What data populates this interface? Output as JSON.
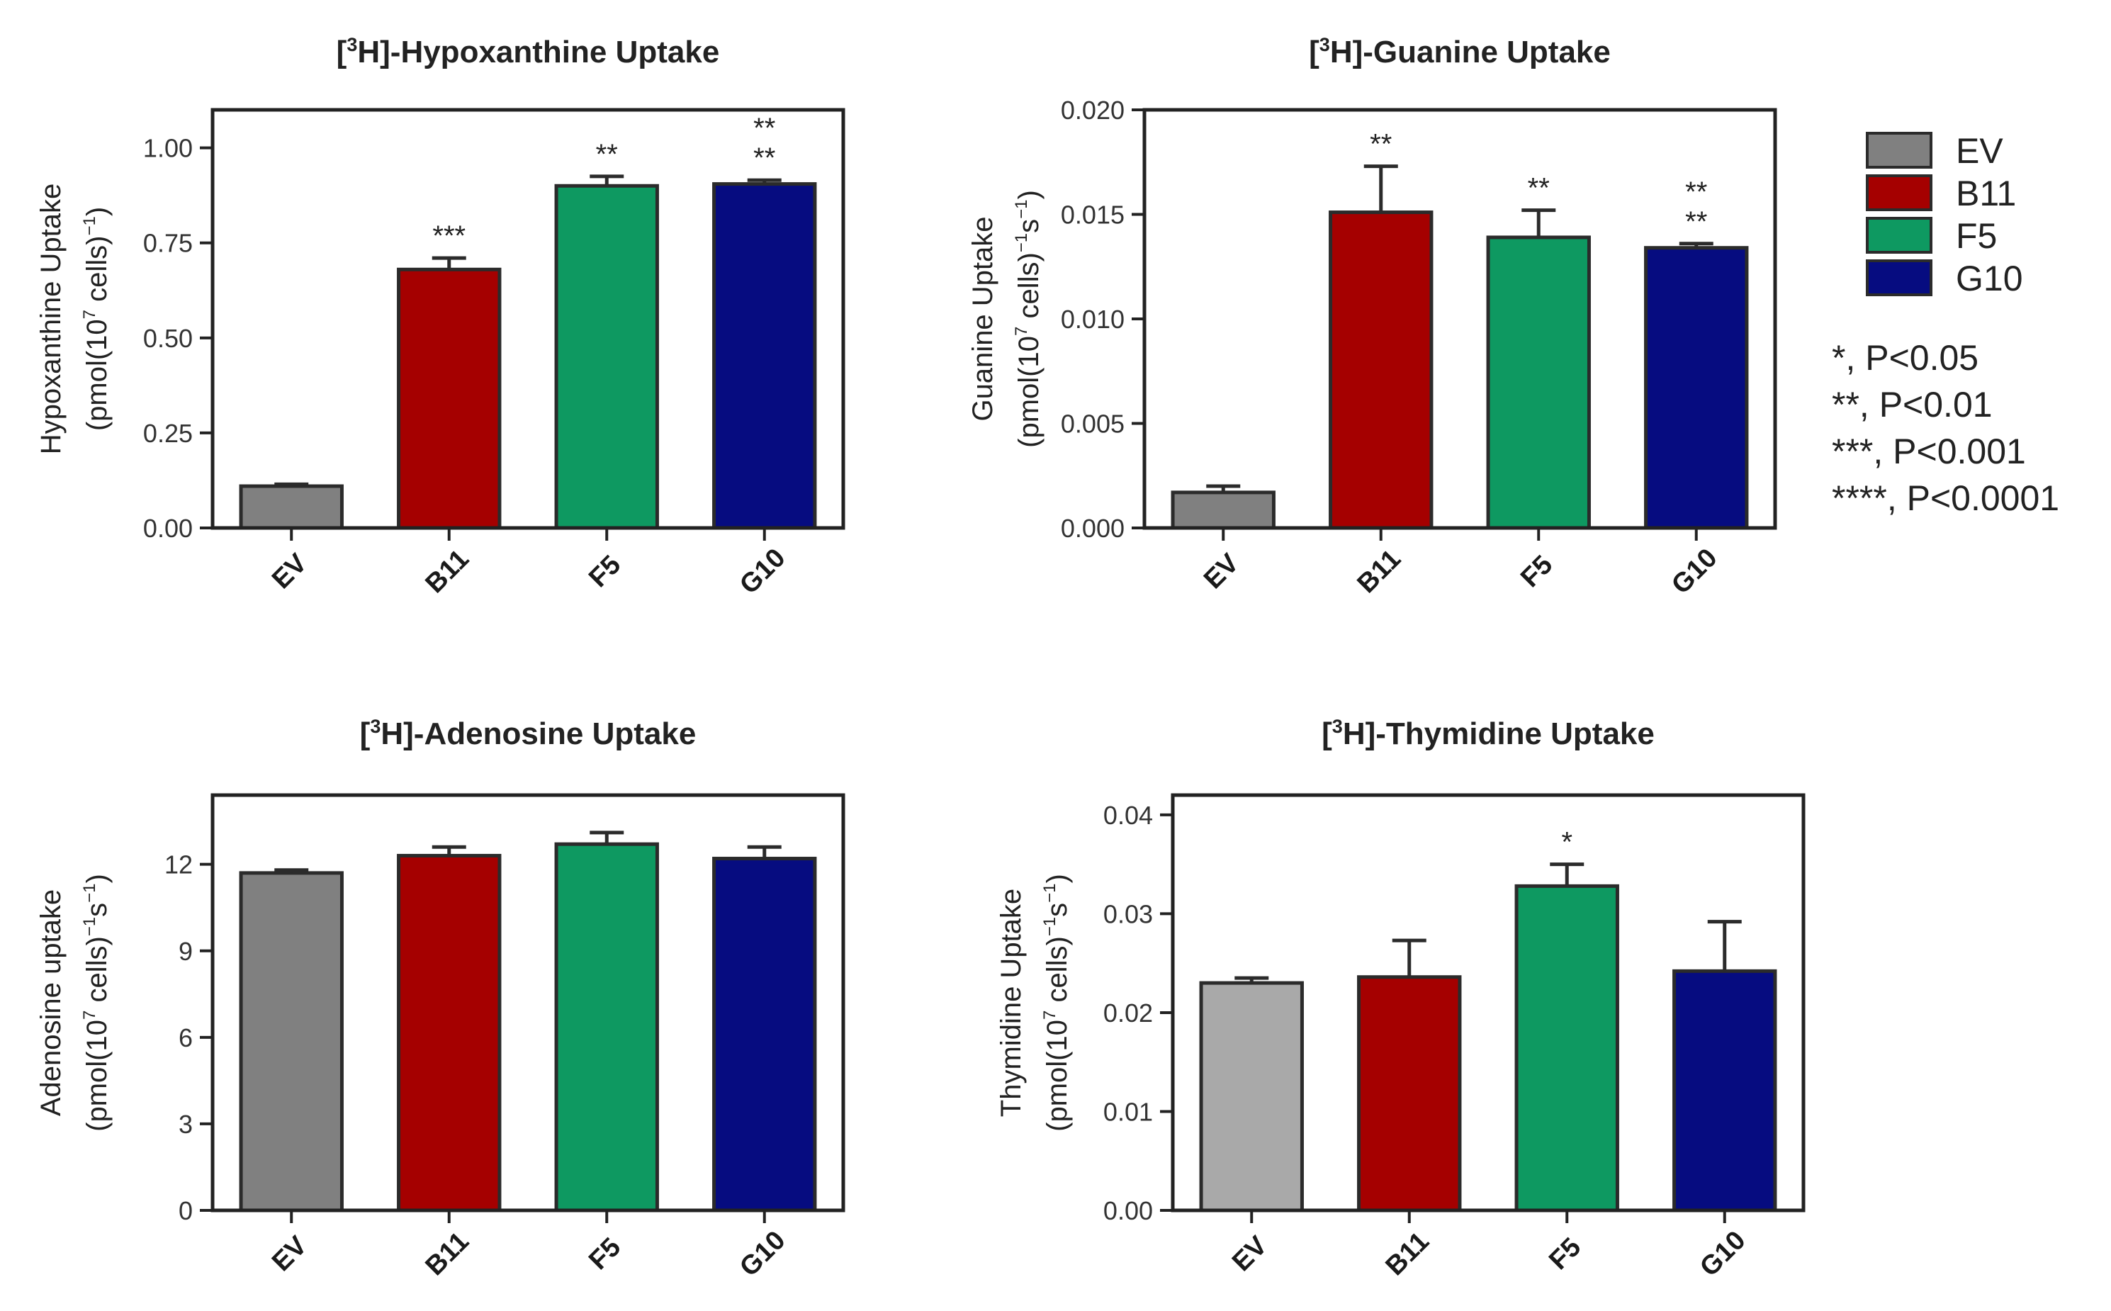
{
  "colors": {
    "EV": "#808080",
    "EV_light": "#a9a9a9",
    "B11": "#a50000",
    "F5": "#0e9961",
    "G10": "#060c80",
    "axis": "#222222"
  },
  "legend": {
    "entries": [
      {
        "label": "EV",
        "color": "#808080"
      },
      {
        "label": "B11",
        "color": "#a50000"
      },
      {
        "label": "F5",
        "color": "#0e9961"
      },
      {
        "label": "G10",
        "color": "#060c80"
      }
    ],
    "significance": [
      "*, P<0.05",
      "**, P<0.01",
      "***, P<0.001",
      "****, P<0.0001"
    ]
  },
  "chart_data": [
    {
      "type": "bar",
      "title_prefix": "[",
      "title_sup": "3",
      "title_rest": "H]-Hypoxanthine Uptake",
      "ylabel_line1": "Hypoxanthine Uptake",
      "ylabel_line2_pre": "(pmol(10",
      "ylabel_line2_sup1": "7",
      "ylabel_line2_mid": " cells)",
      "ylabel_line2_sup2": "−1",
      "ylabel_line2_post": ")",
      "categories": [
        "EV",
        "B11",
        "F5",
        "G10"
      ],
      "values": [
        0.11,
        0.68,
        0.9,
        0.905
      ],
      "errors": [
        0.005,
        0.03,
        0.025,
        0.01
      ],
      "significance": [
        "",
        "***",
        "**",
        "**\n**"
      ],
      "ylim": [
        0,
        1.1
      ],
      "yticks": [
        "0.00",
        "0.25",
        "0.50",
        "0.75",
        "1.00"
      ],
      "ytick_values": [
        0,
        0.25,
        0.5,
        0.75,
        1.0
      ],
      "bar_colors": [
        "#808080",
        "#a50000",
        "#0e9961",
        "#060c80"
      ]
    },
    {
      "type": "bar",
      "title_prefix": "[",
      "title_sup": "3",
      "title_rest": "H]-Guanine Uptake",
      "ylabel_line1": "Guanine Uptake",
      "ylabel_line2_pre": "(pmol(10",
      "ylabel_line2_sup1": "7",
      "ylabel_line2_mid": " cells)",
      "ylabel_line2_sup2": "−1",
      "ylabel_line2_post": "s",
      "ylabel_line2_sup3": "−1",
      "ylabel_line2_end": ")",
      "categories": [
        "EV",
        "B11",
        "F5",
        "G10"
      ],
      "values": [
        0.0017,
        0.0151,
        0.0139,
        0.0134
      ],
      "errors": [
        0.0003,
        0.0022,
        0.0013,
        0.0002
      ],
      "significance": [
        "",
        "**",
        "**",
        "**\n**"
      ],
      "ylim": [
        0,
        0.02
      ],
      "yticks": [
        "0.000",
        "0.005",
        "0.010",
        "0.015",
        "0.020"
      ],
      "ytick_values": [
        0,
        0.005,
        0.01,
        0.015,
        0.02
      ],
      "bar_colors": [
        "#808080",
        "#a50000",
        "#0e9961",
        "#060c80"
      ]
    },
    {
      "type": "bar",
      "title_prefix": "[",
      "title_sup": "3",
      "title_rest": "H]-Adenosine Uptake",
      "ylabel_line1": "Adenosine uptake",
      "ylabel_line2_pre": "(pmol(10",
      "ylabel_line2_sup1": "7",
      "ylabel_line2_mid": " cells)",
      "ylabel_line2_sup2": "−1",
      "ylabel_line2_post": "s",
      "ylabel_line2_sup3": "−1",
      "ylabel_line2_end": ")",
      "categories": [
        "EV",
        "B11",
        "F5",
        "G10"
      ],
      "values": [
        11.7,
        12.3,
        12.7,
        12.2
      ],
      "errors": [
        0.1,
        0.3,
        0.4,
        0.4
      ],
      "significance": [
        "",
        "",
        "",
        ""
      ],
      "ylim": [
        0,
        14.4
      ],
      "yticks": [
        "0",
        "3",
        "6",
        "9",
        "12"
      ],
      "ytick_values": [
        0,
        3,
        6,
        9,
        12
      ],
      "bar_colors": [
        "#808080",
        "#a50000",
        "#0e9961",
        "#060c80"
      ]
    },
    {
      "type": "bar",
      "title_prefix": "[",
      "title_sup": "3",
      "title_rest": "H]-Thymidine Uptake",
      "ylabel_line1": "Thymidine Uptake",
      "ylabel_line2_pre": "(pmol(10",
      "ylabel_line2_sup1": "7",
      "ylabel_line2_mid": " cells)",
      "ylabel_line2_sup2": "−1",
      "ylabel_line2_post": "s",
      "ylabel_line2_sup3": "−1",
      "ylabel_line2_end": ")",
      "categories": [
        "EV",
        "B11",
        "F5",
        "G10"
      ],
      "values": [
        0.023,
        0.0236,
        0.0328,
        0.0242
      ],
      "errors": [
        0.0005,
        0.0037,
        0.0022,
        0.005
      ],
      "significance": [
        "",
        "",
        "*",
        ""
      ],
      "ylim": [
        0,
        0.042
      ],
      "yticks": [
        "0.00",
        "0.01",
        "0.02",
        "0.03",
        "0.04"
      ],
      "ytick_values": [
        0,
        0.01,
        0.02,
        0.03,
        0.04
      ],
      "bar_colors": [
        "#a9a9a9",
        "#a50000",
        "#0e9961",
        "#060c80"
      ]
    }
  ]
}
